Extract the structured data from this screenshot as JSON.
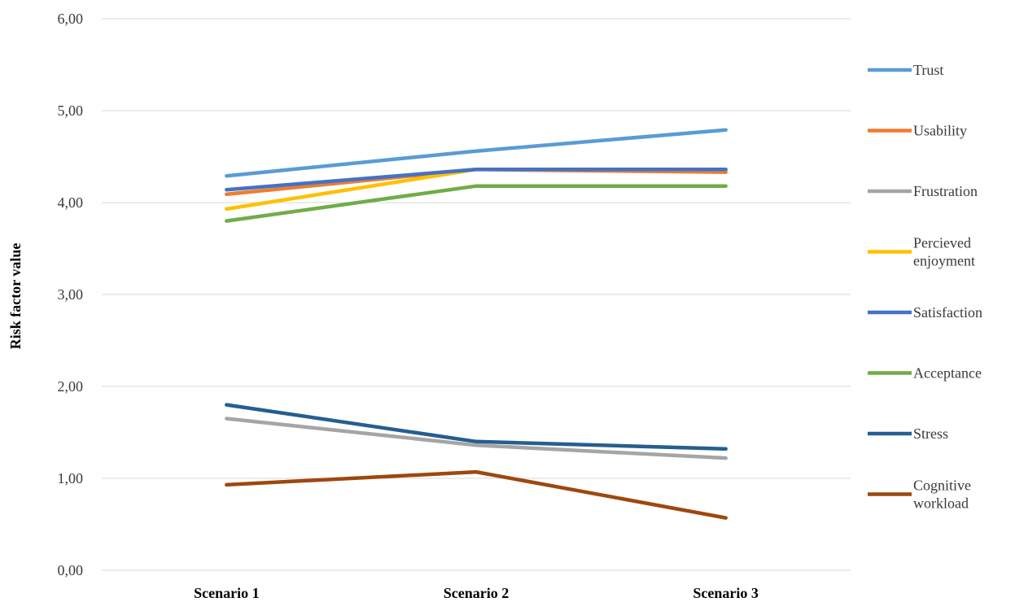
{
  "chart_data": {
    "type": "line",
    "title": "",
    "xlabel": "",
    "ylabel": "Risk factor value",
    "ylim": [
      0,
      6
    ],
    "yticks": [
      0,
      1,
      2,
      3,
      4,
      5,
      6
    ],
    "ytick_labels": [
      "0,00",
      "1,00",
      "2,00",
      "3,00",
      "4,00",
      "5,00",
      "6,00"
    ],
    "grid": "horizontal",
    "legend_position": "right",
    "categories": [
      "Scenario 1",
      "Scenario 2",
      "Scenario 3"
    ],
    "series": [
      {
        "name": "Trust",
        "lines": [
          "Trust"
        ],
        "color": "#5B9BD5",
        "values": [
          4.29,
          4.56,
          4.79
        ]
      },
      {
        "name": "Usability",
        "lines": [
          "Usability"
        ],
        "color": "#ED7D31",
        "values": [
          4.09,
          4.36,
          4.33
        ]
      },
      {
        "name": "Frustration",
        "lines": [
          "Frustration"
        ],
        "color": "#A5A5A5",
        "values": [
          1.65,
          1.36,
          1.22
        ]
      },
      {
        "name": "Percieved enjoyment",
        "lines": [
          "Percieved",
          "enjoyment"
        ],
        "color": "#FFC000",
        "values": [
          3.93,
          4.36,
          4.36
        ]
      },
      {
        "name": "Satisfaction",
        "lines": [
          "Satisfaction"
        ],
        "color": "#4472C4",
        "values": [
          4.14,
          4.36,
          4.36
        ]
      },
      {
        "name": "Acceptance",
        "lines": [
          "Acceptance"
        ],
        "color": "#70AD47",
        "values": [
          3.8,
          4.18,
          4.18
        ]
      },
      {
        "name": "Stress",
        "lines": [
          "Stress"
        ],
        "color": "#255E91",
        "values": [
          1.8,
          1.4,
          1.32
        ]
      },
      {
        "name": "Cognitive workload",
        "lines": [
          "Cognitive",
          "workload"
        ],
        "color": "#9E480E",
        "values": [
          0.93,
          1.07,
          0.57
        ]
      }
    ]
  }
}
